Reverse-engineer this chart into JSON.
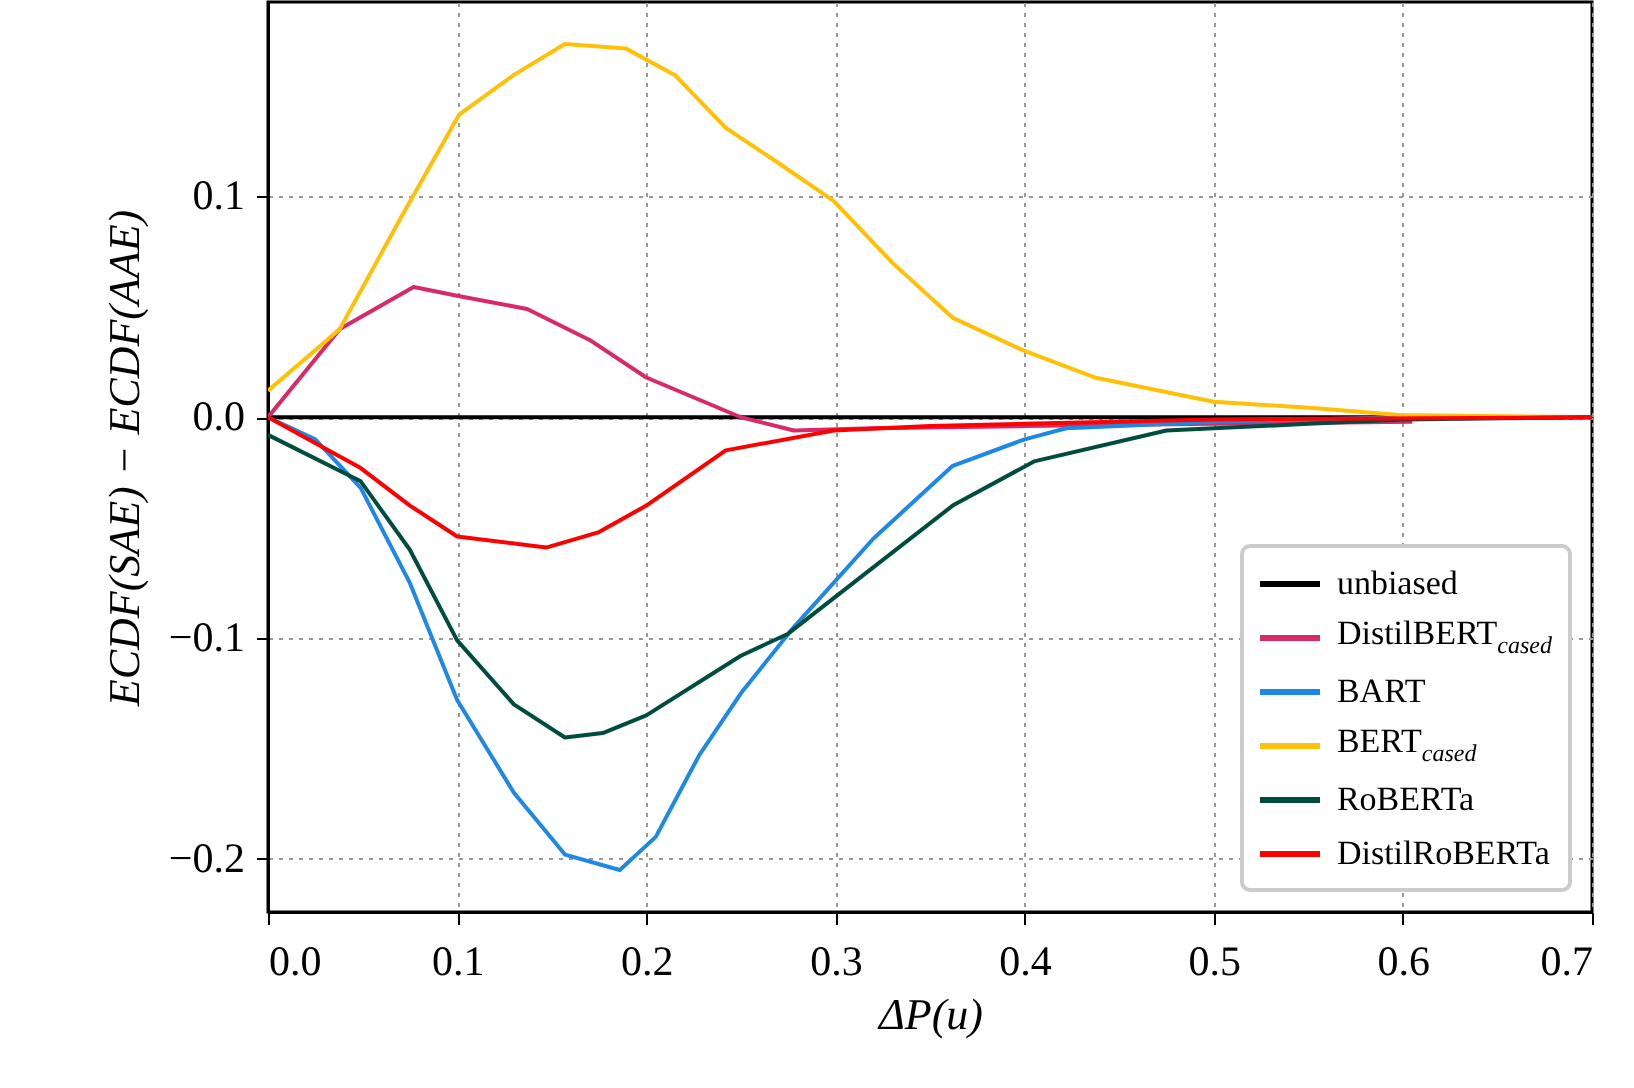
{
  "chart_data": {
    "type": "line",
    "xlabel": "ΔP(u)",
    "ylabel": "ECDF(SAE) − ECDF(AAE)",
    "xlim": [
      0,
      0.7
    ],
    "ylim": [
      -0.224,
      0.188
    ],
    "xticks": [
      {
        "value": 0,
        "label": "0.0"
      },
      0.1,
      0.2,
      0.3,
      0.4,
      0.5,
      0.6,
      0.7
    ],
    "yticks": [
      {
        "value": -0.2,
        "label": "−0.2"
      },
      {
        "value": -0.1,
        "label": "−0.1"
      },
      {
        "value": 0,
        "label": "0.0"
      },
      0.1
    ],
    "grid": true,
    "legend": "bottom right",
    "line_style": "solid",
    "marker": "none",
    "series": [
      {
        "name": "unbiased",
        "color": "#000000",
        "x": [
          0,
          0.7
        ],
        "values": [
          0,
          0
        ]
      },
      {
        "name": "DistilBERT$_{cased}$",
        "color": "#d62a6a",
        "x": [
          0,
          0.038,
          0.077,
          0.1,
          0.137,
          0.17,
          0.2,
          0.25,
          0.278,
          0.32,
          0.4,
          0.5,
          0.605
        ],
        "values": [
          0,
          0.04,
          0.059,
          0.055,
          0.049,
          0.035,
          0.018,
          0,
          -0.006,
          -0.005,
          -0.004,
          -0.003,
          -0.002
        ]
      },
      {
        "name": "BART",
        "color": "#1e88e5",
        "x": [
          0,
          0.025,
          0.049,
          0.075,
          0.1,
          0.13,
          0.157,
          0.186,
          0.205,
          0.228,
          0.25,
          0.278,
          0.32,
          0.362,
          0.4,
          0.422,
          0.45,
          0.5,
          0.55,
          0.6
        ],
        "values": [
          0,
          -0.01,
          -0.032,
          -0.075,
          -0.128,
          -0.17,
          -0.198,
          -0.205,
          -0.19,
          -0.153,
          -0.125,
          -0.095,
          -0.055,
          -0.022,
          -0.01,
          -0.005,
          -0.004,
          -0.002,
          -0.001,
          0
        ]
      },
      {
        "name": "BERT$_{cased}$",
        "color": "#ffc107",
        "x": [
          0,
          0.038,
          0.07,
          0.101,
          0.13,
          0.157,
          0.189,
          0.215,
          0.242,
          0.27,
          0.299,
          0.33,
          0.362,
          0.4,
          0.437,
          0.5,
          0.556,
          0.598,
          0.7
        ],
        "values": [
          0.012,
          0.04,
          0.09,
          0.137,
          0.155,
          0.169,
          0.167,
          0.155,
          0.131,
          0.115,
          0.098,
          0.07,
          0.045,
          0.03,
          0.018,
          0.007,
          0.004,
          0.001,
          0
        ]
      },
      {
        "name": "RoBERTa",
        "color": "#004d40",
        "x": [
          0,
          0.049,
          0.075,
          0.1,
          0.13,
          0.157,
          0.177,
          0.2,
          0.25,
          0.275,
          0.32,
          0.362,
          0.405,
          0.475,
          0.55,
          0.6,
          0.7
        ],
        "values": [
          -0.008,
          -0.029,
          -0.06,
          -0.101,
          -0.13,
          -0.145,
          -0.143,
          -0.135,
          -0.108,
          -0.098,
          -0.068,
          -0.04,
          -0.02,
          -0.006,
          -0.003,
          -0.001,
          0
        ]
      },
      {
        "name": "DistilRoBERTa",
        "color": "#ff0000",
        "x": [
          0,
          0.049,
          0.075,
          0.1,
          0.147,
          0.175,
          0.2,
          0.242,
          0.299,
          0.35,
          0.4,
          0.5,
          0.7
        ],
        "values": [
          0,
          -0.023,
          -0.04,
          -0.054,
          -0.059,
          -0.052,
          -0.04,
          -0.015,
          -0.006,
          -0.004,
          -0.003,
          -0.001,
          0
        ]
      }
    ]
  }
}
